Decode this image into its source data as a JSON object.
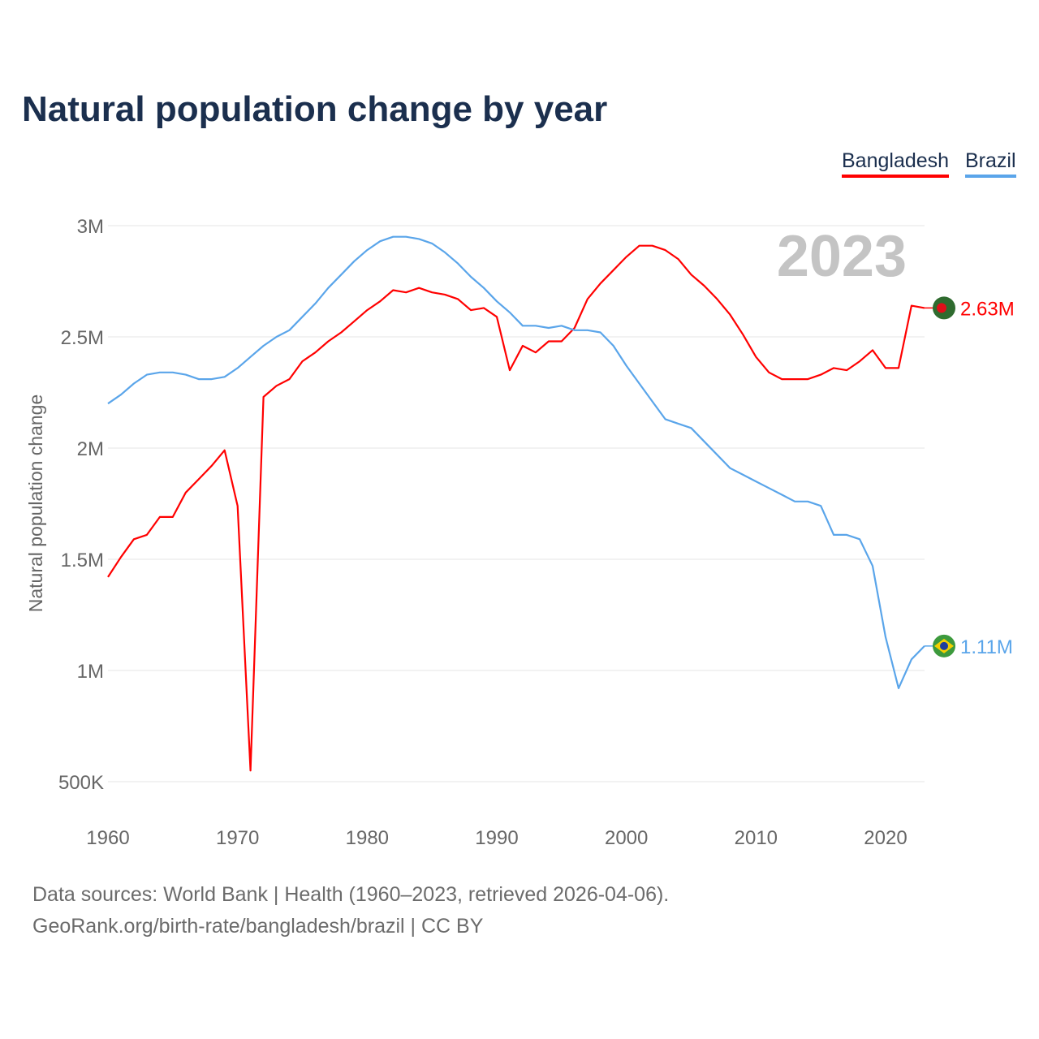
{
  "chart_data": {
    "type": "line",
    "title": "Natural population change by year",
    "xlabel": "",
    "ylabel": "Natural population change",
    "ylim": [
      500000,
      3000000
    ],
    "xlim": [
      1960,
      2023
    ],
    "yticks": [
      {
        "v": 500000,
        "label": "500K"
      },
      {
        "v": 1000000,
        "label": "1M"
      },
      {
        "v": 1500000,
        "label": "1.5M"
      },
      {
        "v": 2000000,
        "label": "2M"
      },
      {
        "v": 2500000,
        "label": "2.5M"
      },
      {
        "v": 3000000,
        "label": "3M"
      }
    ],
    "xticks": [
      1960,
      1970,
      1980,
      1990,
      2000,
      2010,
      2020
    ],
    "grid": true,
    "legend_position": "top-right",
    "year_label": "2023",
    "x": [
      1960,
      1961,
      1962,
      1963,
      1964,
      1965,
      1966,
      1967,
      1968,
      1969,
      1970,
      1971,
      1972,
      1973,
      1974,
      1975,
      1976,
      1977,
      1978,
      1979,
      1980,
      1981,
      1982,
      1983,
      1984,
      1985,
      1986,
      1987,
      1988,
      1989,
      1990,
      1991,
      1992,
      1993,
      1994,
      1995,
      1996,
      1997,
      1998,
      1999,
      2000,
      2001,
      2002,
      2003,
      2004,
      2005,
      2006,
      2007,
      2008,
      2009,
      2010,
      2011,
      2012,
      2013,
      2014,
      2015,
      2016,
      2017,
      2018,
      2019,
      2020,
      2021,
      2022,
      2023
    ],
    "series": [
      {
        "name": "Bangladesh",
        "color": "#ff0000",
        "end_label": "2.63M",
        "values": [
          1.42,
          1.51,
          1.59,
          1.61,
          1.69,
          1.69,
          1.8,
          1.86,
          1.92,
          1.99,
          1.74,
          0.55,
          2.23,
          2.28,
          2.31,
          2.39,
          2.43,
          2.48,
          2.52,
          2.57,
          2.62,
          2.66,
          2.71,
          2.7,
          2.72,
          2.7,
          2.69,
          2.67,
          2.62,
          2.63,
          2.59,
          2.35,
          2.46,
          2.43,
          2.48,
          2.48,
          2.54,
          2.67,
          2.74,
          2.8,
          2.86,
          2.91,
          2.91,
          2.89,
          2.85,
          2.78,
          2.73,
          2.67,
          2.6,
          2.51,
          2.41,
          2.34,
          2.31,
          2.31,
          2.31,
          2.33,
          2.36,
          2.35,
          2.39,
          2.44,
          2.36,
          2.36,
          2.64,
          2.63
        ]
      },
      {
        "name": "Brazil",
        "color": "#5aa5ea",
        "end_label": "1.11M",
        "values": [
          2.2,
          2.24,
          2.29,
          2.33,
          2.34,
          2.34,
          2.33,
          2.31,
          2.31,
          2.32,
          2.36,
          2.41,
          2.46,
          2.5,
          2.53,
          2.59,
          2.65,
          2.72,
          2.78,
          2.84,
          2.89,
          2.93,
          2.95,
          2.95,
          2.94,
          2.92,
          2.88,
          2.83,
          2.77,
          2.72,
          2.66,
          2.61,
          2.55,
          2.55,
          2.54,
          2.55,
          2.53,
          2.53,
          2.52,
          2.46,
          2.37,
          2.29,
          2.21,
          2.13,
          2.11,
          2.09,
          2.03,
          1.97,
          1.91,
          1.88,
          1.85,
          1.82,
          1.79,
          1.76,
          1.76,
          1.74,
          1.61,
          1.61,
          1.59,
          1.47,
          1.15,
          0.92,
          1.05,
          1.11
        ]
      }
    ],
    "value_unit_multiplier": 1000000
  },
  "footer": {
    "line1": "Data sources: World Bank | Health (1960–2023, retrieved 2026-04-06).",
    "line2": "GeoRank.org/birth-rate/bangladesh/brazil | CC BY"
  }
}
